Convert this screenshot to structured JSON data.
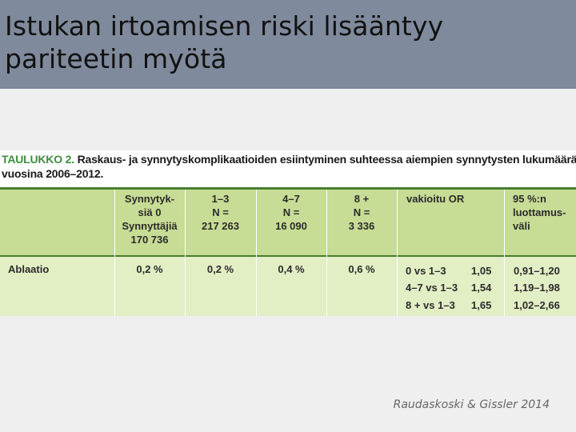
{
  "slide": {
    "title": "Istukan irtoamisen riski lisääntyy pariteetin myötä",
    "credit": "Raudaskoski & Gissler 2014"
  },
  "table": {
    "caption_label": "TAULUKKO 2.",
    "caption_line1": "Raskaus- ja synnytyskomplikaatioiden esiintyminen suhteessa aiempien synnytysten lukumäärään",
    "caption_line2": "vuosina 2006–2012.",
    "headers": [
      {
        "lines": [
          "Synnytyk-",
          "siä 0",
          "Synnyttäjiä",
          "170 736"
        ]
      },
      {
        "lines": [
          "1–3",
          "N =",
          "217 263"
        ]
      },
      {
        "lines": [
          "4–7",
          "N =",
          "16 090"
        ]
      },
      {
        "lines": [
          "8 +",
          "N =",
          "3 336"
        ]
      },
      {
        "lines": [
          "vakioitu OR"
        ]
      },
      {
        "lines": [
          "95 %:n",
          "luottamus-",
          "väli"
        ]
      }
    ],
    "row": {
      "label": "Ablaatio",
      "values": [
        "0,2 %",
        "0,2 %",
        "0,4 %",
        "0,6 %"
      ],
      "comparisons": [
        "0 vs 1–3",
        "4–7 vs 1–3",
        "8 +  vs 1–3"
      ],
      "or_values": [
        "1,05",
        "1,54",
        "1,65"
      ],
      "ci_values": [
        "0,91–1,20",
        "1,19–1,98",
        "1,02–2,66"
      ]
    }
  }
}
